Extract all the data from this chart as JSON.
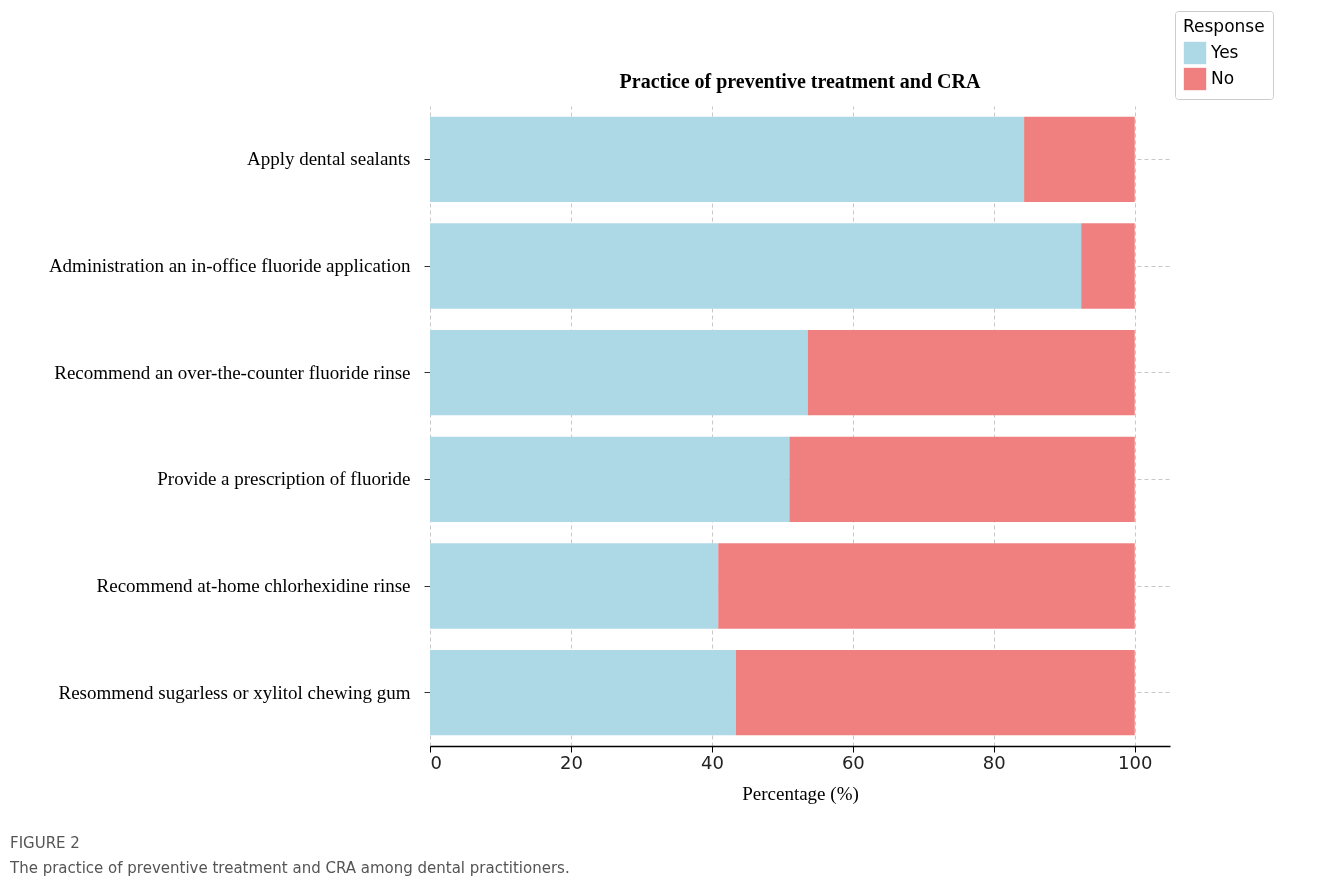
{
  "chart_data": {
    "type": "bar",
    "orientation": "horizontal",
    "stacked": true,
    "title": "Practice of preventive treatment and CRA",
    "xlabel": "Percentage (%)",
    "legend_title": "Response",
    "categories": [
      "Apply dental sealants",
      "Administration an in-office fluoride application",
      "Recommend an over-the-counter fluoride rinse",
      "Provide a prescription of fluoride",
      "Recommend at-home chlorhexidine rinse",
      "Resommend sugarless or xylitol chewing gum"
    ],
    "series": [
      {
        "name": "Yes",
        "color": "#add8e6",
        "values": [
          84.3,
          92.4,
          53.6,
          51.0,
          40.9,
          43.4
        ]
      },
      {
        "name": "No",
        "color": "#f08080",
        "values": [
          15.7,
          7.6,
          46.4,
          49.0,
          59.1,
          56.6
        ]
      }
    ],
    "xlim": [
      0,
      105
    ],
    "xticks": [
      0,
      20,
      40,
      60,
      80,
      100
    ],
    "grid": true,
    "legend": "top right",
    "annotations": [
      "FIGURE 2",
      "The practice of preventive treatment and CRA among dental practitioners."
    ]
  }
}
